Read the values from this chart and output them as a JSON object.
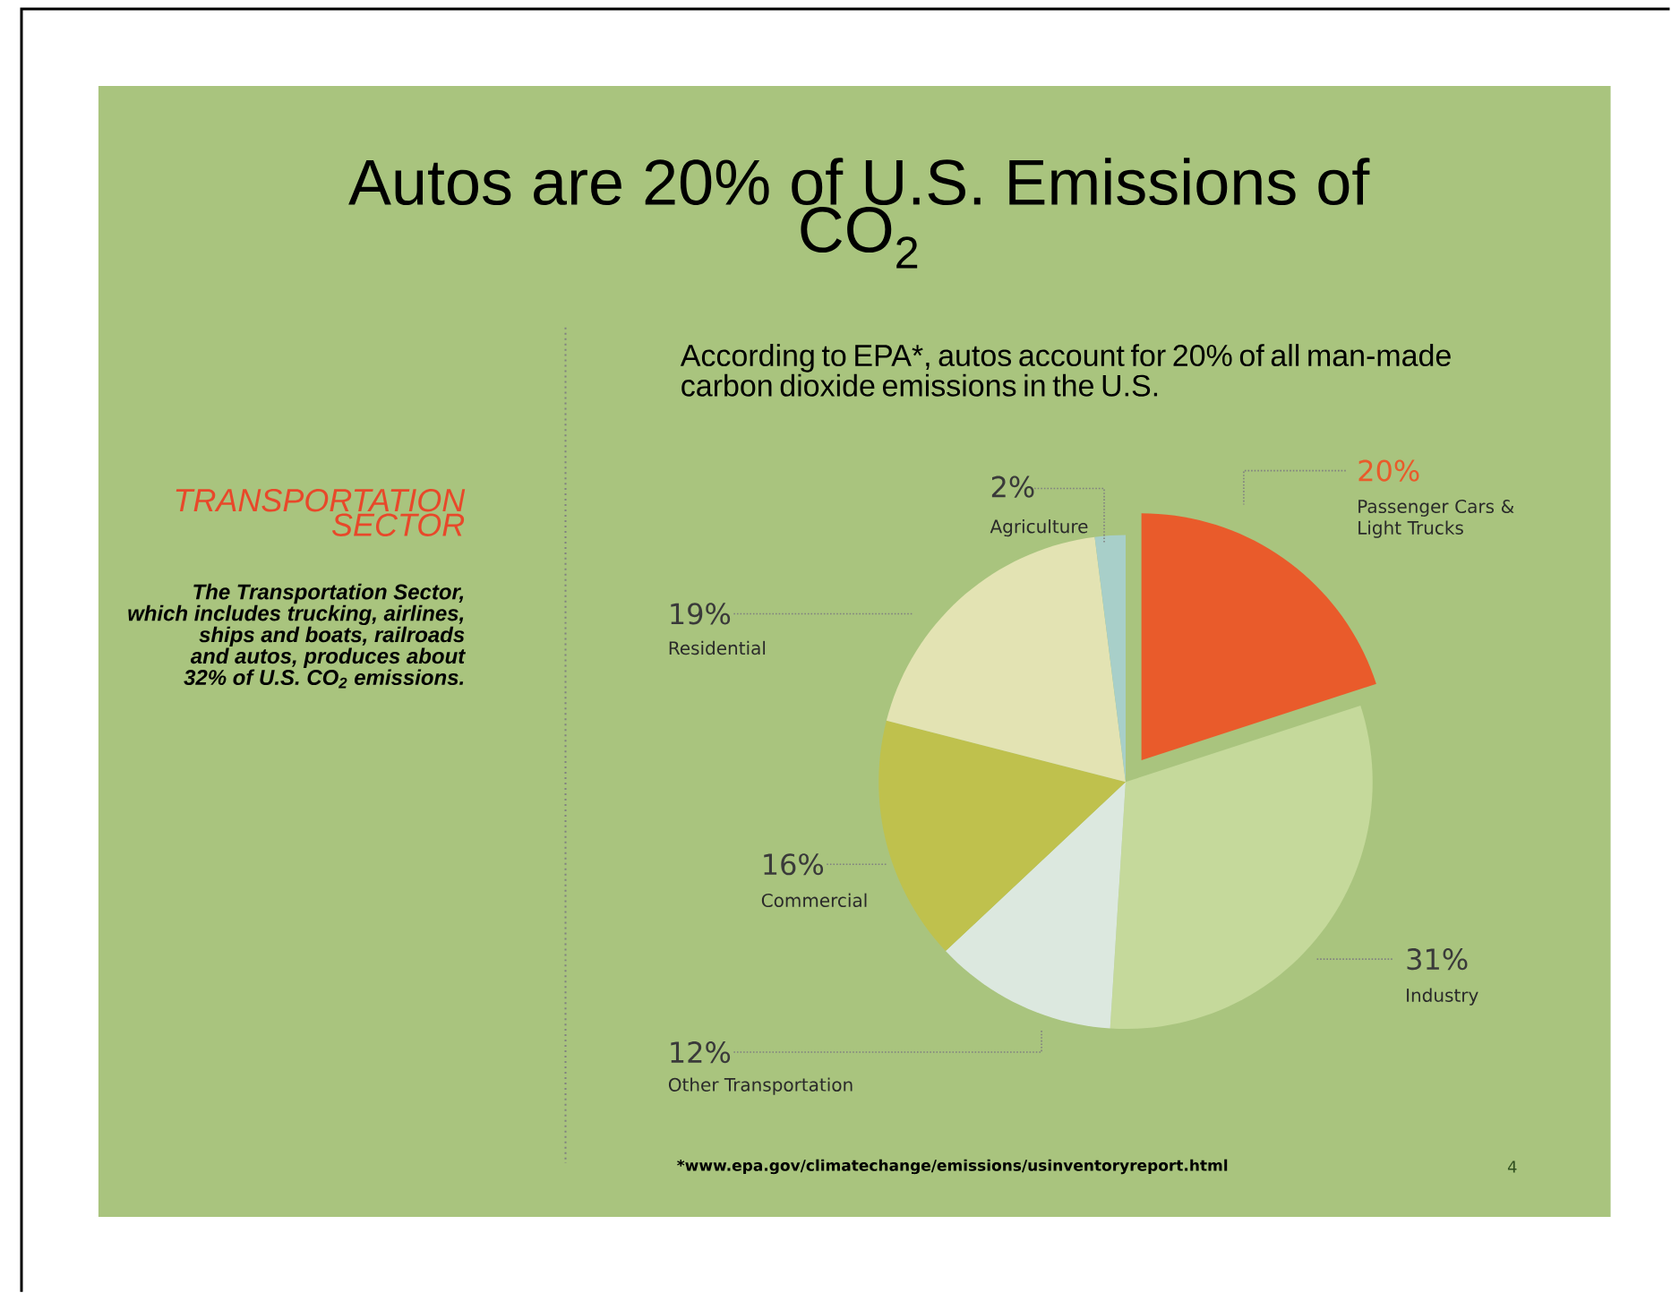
{
  "chart_data": {
    "type": "pie",
    "title": "Autos are 20% of U.S. Emissions of CO$_{2}$",
    "subtitle": "According to EPA*, autos account for 20% of all man-made carbon dioxide emissions in the U.S.",
    "categories": [
      "Passenger Cars & Light Trucks",
      "Industry",
      "Other Transportation",
      "Commercial",
      "Residential",
      "Agriculture"
    ],
    "values": [
      20,
      31,
      12,
      16,
      19,
      2
    ],
    "value_labels": [
      "20%",
      "31%",
      "12%",
      "16%",
      "19%",
      "2%"
    ],
    "colors": [
      "#e95b2b",
      "#c5d99b",
      "#dce8df",
      "#bfc14d",
      "#e3e3b3",
      "#a8cfc9"
    ],
    "annotations": [
      "TRANSPORTATION SECTOR",
      "The Transportation Sector, which includes trucking, airlines, ships and boats, railroads and autos, produces about 32% of U.S. CO$_{2}$ emissions.",
      "*www.epa.gov/climatechange/emissions/usinventoryreport.html",
      "4"
    ]
  }
}
